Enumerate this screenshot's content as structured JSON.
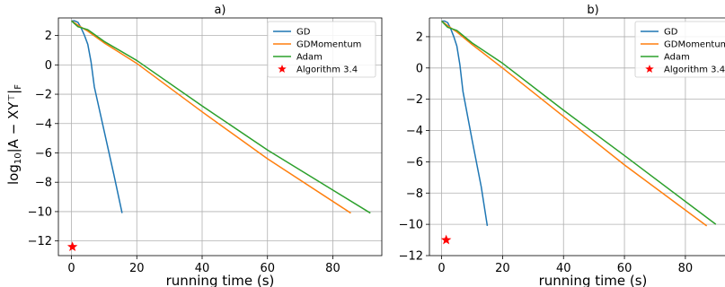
{
  "chart_data": [
    {
      "type": "line",
      "title": "a)",
      "xlabel": "running time (s)",
      "ylabel": "log10|A − XYᵀ|F",
      "ylabel_parts": {
        "base": "log",
        "sub": "10",
        "body": "|A − XY",
        "sup": "⊤",
        "close": "|",
        "sub2": "F"
      },
      "xlim": [
        -4,
        95
      ],
      "ylim": [
        -13,
        3.2
      ],
      "xticks": [
        0,
        20,
        40,
        60,
        80
      ],
      "xtick_labels": [
        "0",
        "20",
        "40",
        "60",
        "80"
      ],
      "yticks": [
        2,
        0,
        -2,
        -4,
        -6,
        -8,
        -10,
        -12
      ],
      "ytick_labels": [
        "2",
        "0",
        "−2",
        "−4",
        "−6",
        "−8",
        "−10",
        "−12"
      ],
      "grid": true,
      "legend": "top-right",
      "series": [
        {
          "name": "GD",
          "color": "#1f77b4",
          "x": [
            0,
            1,
            2,
            3,
            4,
            5,
            6,
            7,
            10,
            13,
            15.5
          ],
          "y": [
            3,
            3,
            2.9,
            2.5,
            2.0,
            1.4,
            0.2,
            -1.5,
            -4.5,
            -7.5,
            -10.1
          ]
        },
        {
          "name": "GDMomentum",
          "color": "#ff7f0e",
          "x": [
            0,
            2,
            5,
            10,
            20,
            40,
            60,
            85.5
          ],
          "y": [
            3,
            2.7,
            2.3,
            1.5,
            0.1,
            -3.2,
            -6.4,
            -10.1
          ]
        },
        {
          "name": "Adam",
          "color": "#2ca02c",
          "x": [
            0,
            2,
            5,
            10,
            20,
            40,
            60,
            91.5
          ],
          "y": [
            3,
            2.6,
            2.4,
            1.6,
            0.3,
            -2.8,
            -5.8,
            -10.1
          ]
        },
        {
          "name": "Algorithm 3.4",
          "color": "#ff0000",
          "kind": "marker",
          "x": [
            0.3
          ],
          "y": [
            -12.4
          ]
        }
      ]
    },
    {
      "type": "line",
      "title": "b)",
      "xlabel": "running time (s)",
      "ylabel": "",
      "xlim": [
        -4,
        93
      ],
      "ylim": [
        -12,
        3.2
      ],
      "xticks": [
        0,
        20,
        40,
        60,
        80
      ],
      "xtick_labels": [
        "0",
        "20",
        "40",
        "60",
        "80"
      ],
      "yticks": [
        2,
        0,
        -2,
        -4,
        -6,
        -8,
        -10,
        -12
      ],
      "ytick_labels": [
        "2",
        "0",
        "−2",
        "−4",
        "−6",
        "−8",
        "−10",
        "−12"
      ],
      "grid": true,
      "legend": "top-right",
      "series": [
        {
          "name": "GD",
          "color": "#1f77b4",
          "x": [
            0,
            1,
            2,
            3,
            4,
            5,
            6,
            7,
            10,
            13,
            15
          ],
          "y": [
            3,
            3,
            2.9,
            2.5,
            2.0,
            1.4,
            0.2,
            -1.5,
            -4.6,
            -7.6,
            -10.1
          ]
        },
        {
          "name": "GDMomentum",
          "color": "#ff7f0e",
          "x": [
            0,
            2,
            5,
            10,
            20,
            40,
            60,
            87
          ],
          "y": [
            3,
            2.7,
            2.3,
            1.5,
            0.0,
            -3.1,
            -6.2,
            -10.1
          ]
        },
        {
          "name": "Adam",
          "color": "#2ca02c",
          "x": [
            0,
            2,
            5,
            10,
            20,
            40,
            60,
            90
          ],
          "y": [
            3,
            2.6,
            2.4,
            1.6,
            0.3,
            -2.7,
            -5.6,
            -10.0
          ]
        },
        {
          "name": "Algorithm 3.4",
          "color": "#ff0000",
          "kind": "marker",
          "x": [
            1.5
          ],
          "y": [
            -11.0
          ]
        }
      ]
    }
  ]
}
